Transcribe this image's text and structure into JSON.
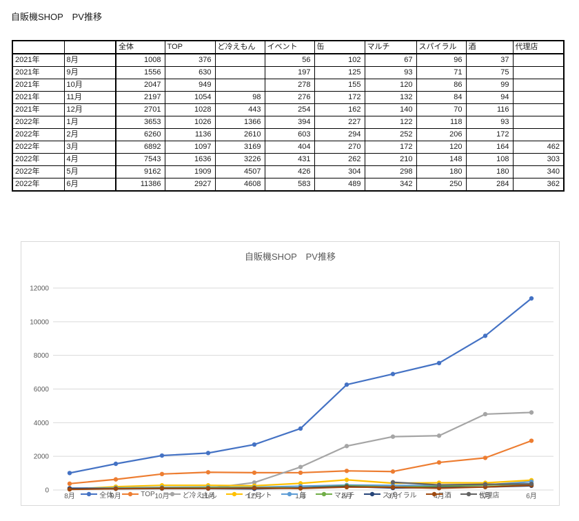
{
  "page": {
    "title": "自販機SHOP　PV推移"
  },
  "table": {
    "columns": [
      "",
      "",
      "全体",
      "TOP",
      "ど冷えもん",
      "イベント",
      "缶",
      "マルチ",
      "スパイラル",
      "酒",
      "代理店"
    ],
    "rows": [
      {
        "year": "2021年",
        "month": "8月",
        "values": [
          1008,
          376,
          null,
          56,
          102,
          67,
          96,
          37,
          null
        ]
      },
      {
        "year": "2021年",
        "month": "9月",
        "values": [
          1556,
          630,
          null,
          197,
          125,
          93,
          71,
          75,
          null
        ]
      },
      {
        "year": "2021年",
        "month": "10月",
        "values": [
          2047,
          949,
          null,
          278,
          155,
          120,
          86,
          99,
          null
        ]
      },
      {
        "year": "2021年",
        "month": "11月",
        "values": [
          2197,
          1054,
          98,
          276,
          172,
          132,
          84,
          94,
          null
        ]
      },
      {
        "year": "2021年",
        "month": "12月",
        "values": [
          2701,
          1028,
          443,
          254,
          162,
          140,
          70,
          116,
          null
        ]
      },
      {
        "year": "2022年",
        "month": "1月",
        "values": [
          3653,
          1026,
          1366,
          394,
          227,
          122,
          118,
          93,
          null
        ]
      },
      {
        "year": "2022年",
        "month": "2月",
        "values": [
          6260,
          1136,
          2610,
          603,
          294,
          252,
          206,
          172,
          null
        ]
      },
      {
        "year": "2022年",
        "month": "3月",
        "values": [
          6892,
          1097,
          3169,
          404,
          270,
          172,
          120,
          164,
          462
        ]
      },
      {
        "year": "2022年",
        "month": "4月",
        "values": [
          7543,
          1636,
          3226,
          431,
          262,
          210,
          148,
          108,
          303
        ]
      },
      {
        "year": "2022年",
        "month": "5月",
        "values": [
          9162,
          1909,
          4507,
          426,
          304,
          298,
          180,
          180,
          340
        ]
      },
      {
        "year": "2022年",
        "month": "6月",
        "values": [
          11386,
          2927,
          4608,
          583,
          489,
          342,
          250,
          284,
          362
        ]
      }
    ]
  },
  "chart_data": {
    "type": "line",
    "title": "自販機SHOP　PV推移",
    "categories": [
      "8月",
      "9月",
      "10月",
      "11月",
      "12月",
      "1月",
      "2月",
      "3月",
      "4月",
      "5月",
      "6月"
    ],
    "series": [
      {
        "name": "全体",
        "color": "#4472C4",
        "values": [
          1008,
          1556,
          2047,
          2197,
          2701,
          3653,
          6260,
          6892,
          7543,
          9162,
          11386
        ]
      },
      {
        "name": "TOP",
        "color": "#ED7D31",
        "values": [
          376,
          630,
          949,
          1054,
          1028,
          1026,
          1136,
          1097,
          1636,
          1909,
          2927
        ]
      },
      {
        "name": "ど冷えもん",
        "color": "#A5A5A5",
        "values": [
          null,
          null,
          null,
          98,
          443,
          1366,
          2610,
          3169,
          3226,
          4507,
          4608
        ]
      },
      {
        "name": "イベント",
        "color": "#FFC000",
        "values": [
          56,
          197,
          278,
          276,
          254,
          394,
          603,
          404,
          431,
          426,
          583
        ]
      },
      {
        "name": "缶",
        "color": "#5B9BD5",
        "values": [
          102,
          125,
          155,
          172,
          162,
          227,
          294,
          270,
          262,
          304,
          489
        ]
      },
      {
        "name": "マルチ",
        "color": "#70AD47",
        "values": [
          67,
          93,
          120,
          132,
          140,
          122,
          252,
          172,
          210,
          298,
          342
        ]
      },
      {
        "name": "スパイラル",
        "color": "#264478",
        "values": [
          96,
          71,
          86,
          84,
          70,
          118,
          206,
          120,
          148,
          180,
          250
        ]
      },
      {
        "name": "酒",
        "color": "#9E480E",
        "values": [
          37,
          75,
          99,
          94,
          116,
          93,
          172,
          164,
          108,
          180,
          284
        ]
      },
      {
        "name": "代理店",
        "color": "#636363",
        "values": [
          null,
          null,
          null,
          null,
          null,
          null,
          null,
          462,
          303,
          340,
          362
        ]
      }
    ],
    "xlabel": "",
    "ylabel": "",
    "ylim": [
      0,
      12000
    ],
    "yticks": [
      0,
      2000,
      4000,
      6000,
      8000,
      10000,
      12000
    ],
    "grid": true,
    "legend_position": "bottom",
    "gridline_color": "#d9d9d9",
    "axis_text_color": "#595959",
    "marker": "circle"
  }
}
